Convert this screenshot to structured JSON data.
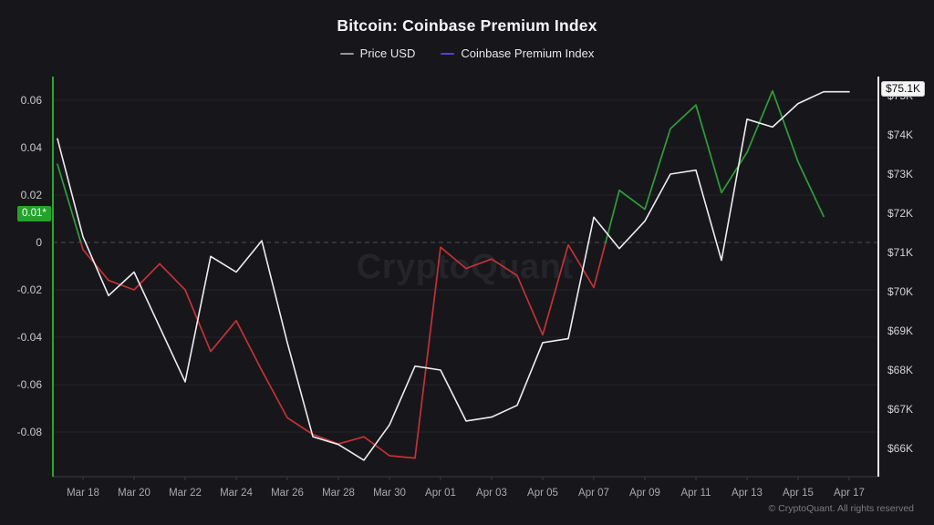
{
  "header": {
    "title": "Bitcoin: Coinbase Premium Index"
  },
  "legend": [
    {
      "label": "Price USD",
      "color": "#9096a0"
    },
    {
      "label": "Coinbase Premium Index",
      "color": "#4a49c9"
    }
  ],
  "watermark": "CryptoQuant",
  "footer": {
    "copyright": "© CryptoQuant. All rights reserved"
  },
  "badges": {
    "premium_current": "0.01*",
    "price_current": "$75.1K"
  },
  "colors": {
    "background": "#17171b",
    "price_line": "#ededef",
    "premium_positive": "#2f9e3a",
    "premium_negative": "#c13236",
    "left_axis_line": "#2ba62e",
    "right_axis_line": "#ebebee",
    "bottom_axis_line": "#3c3c42",
    "grid_line": "#222228",
    "zero_line": "#4e4e56",
    "badge_green_bg": "#24a32a",
    "badge_white_bg": "#f5f5f5",
    "left_tick_text": "#c9c9ce",
    "right_tick_text": "#d2d2d6",
    "x_tick_text": "#a8a8ae"
  },
  "chart_data": {
    "type": "line",
    "title": "Bitcoin: Coinbase Premium Index",
    "grid": "horizontal-only",
    "legend_position": "top",
    "x": [
      "Mar 17",
      "Mar 18",
      "Mar 19",
      "Mar 20",
      "Mar 21",
      "Mar 22",
      "Mar 23",
      "Mar 24",
      "Mar 25",
      "Mar 26",
      "Mar 27",
      "Mar 28",
      "Mar 29",
      "Mar 30",
      "Mar 31",
      "Apr 01",
      "Apr 02",
      "Apr 03",
      "Apr 04",
      "Apr 05",
      "Apr 06",
      "Apr 07",
      "Apr 08",
      "Apr 09",
      "Apr 10",
      "Apr 11",
      "Apr 12",
      "Apr 13",
      "Apr 14",
      "Apr 15",
      "Apr 16",
      "Apr 17"
    ],
    "x_tick_labels": [
      "Mar 18",
      "Mar 20",
      "Mar 22",
      "Mar 24",
      "Mar 26",
      "Mar 28",
      "Mar 30",
      "Apr 01",
      "Apr 03",
      "Apr 05",
      "Apr 07",
      "Apr 09",
      "Apr 11",
      "Apr 13",
      "Apr 15",
      "Apr 17"
    ],
    "series": [
      {
        "name": "Price USD",
        "yaxis": "right",
        "unit": "USD thousands",
        "color": "#ededef",
        "values": [
          73.9,
          71.4,
          69.9,
          70.5,
          69.1,
          67.7,
          70.9,
          70.5,
          71.3,
          68.7,
          66.3,
          66.1,
          65.7,
          66.6,
          68.1,
          68.0,
          66.7,
          66.8,
          67.1,
          68.7,
          68.8,
          71.9,
          71.1,
          71.8,
          73.0,
          73.1,
          70.8,
          74.4,
          74.2,
          74.8,
          75.1,
          75.1
        ]
      },
      {
        "name": "Coinbase Premium Index",
        "yaxis": "left",
        "color_positive": "#2f9e3a",
        "color_negative": "#c13236",
        "values": [
          0.033,
          -0.003,
          -0.016,
          -0.02,
          -0.009,
          -0.02,
          -0.046,
          -0.033,
          -0.054,
          -0.074,
          -0.081,
          -0.085,
          -0.082,
          -0.09,
          -0.091,
          -0.002,
          -0.011,
          -0.007,
          -0.014,
          -0.039,
          -0.001,
          -0.019,
          0.022,
          0.014,
          0.048,
          0.058,
          0.021,
          0.038,
          0.064,
          0.034,
          0.011,
          null
        ]
      }
    ],
    "left_axis": {
      "zero_line_style": "dashed",
      "ticks": [
        {
          "label": "0.06",
          "value": 0.06
        },
        {
          "label": "0.04",
          "value": 0.04
        },
        {
          "label": "0.02",
          "value": 0.02
        },
        {
          "label": "0",
          "value": 0
        },
        {
          "label": "-0.02",
          "value": -0.02
        },
        {
          "label": "-0.04",
          "value": -0.04
        },
        {
          "label": "-0.06",
          "value": -0.06
        },
        {
          "label": "-0.08",
          "value": -0.08
        }
      ]
    },
    "right_axis": {
      "ticks": [
        {
          "label": "$75K",
          "value": 75
        },
        {
          "label": "$74K",
          "value": 74
        },
        {
          "label": "$73K",
          "value": 73
        },
        {
          "label": "$72K",
          "value": 72
        },
        {
          "label": "$71K",
          "value": 71
        },
        {
          "label": "$70K",
          "value": 70
        },
        {
          "label": "$69K",
          "value": 69
        },
        {
          "label": "$68K",
          "value": 68
        },
        {
          "label": "$67K",
          "value": 67
        },
        {
          "label": "$66K",
          "value": 66
        }
      ]
    }
  }
}
